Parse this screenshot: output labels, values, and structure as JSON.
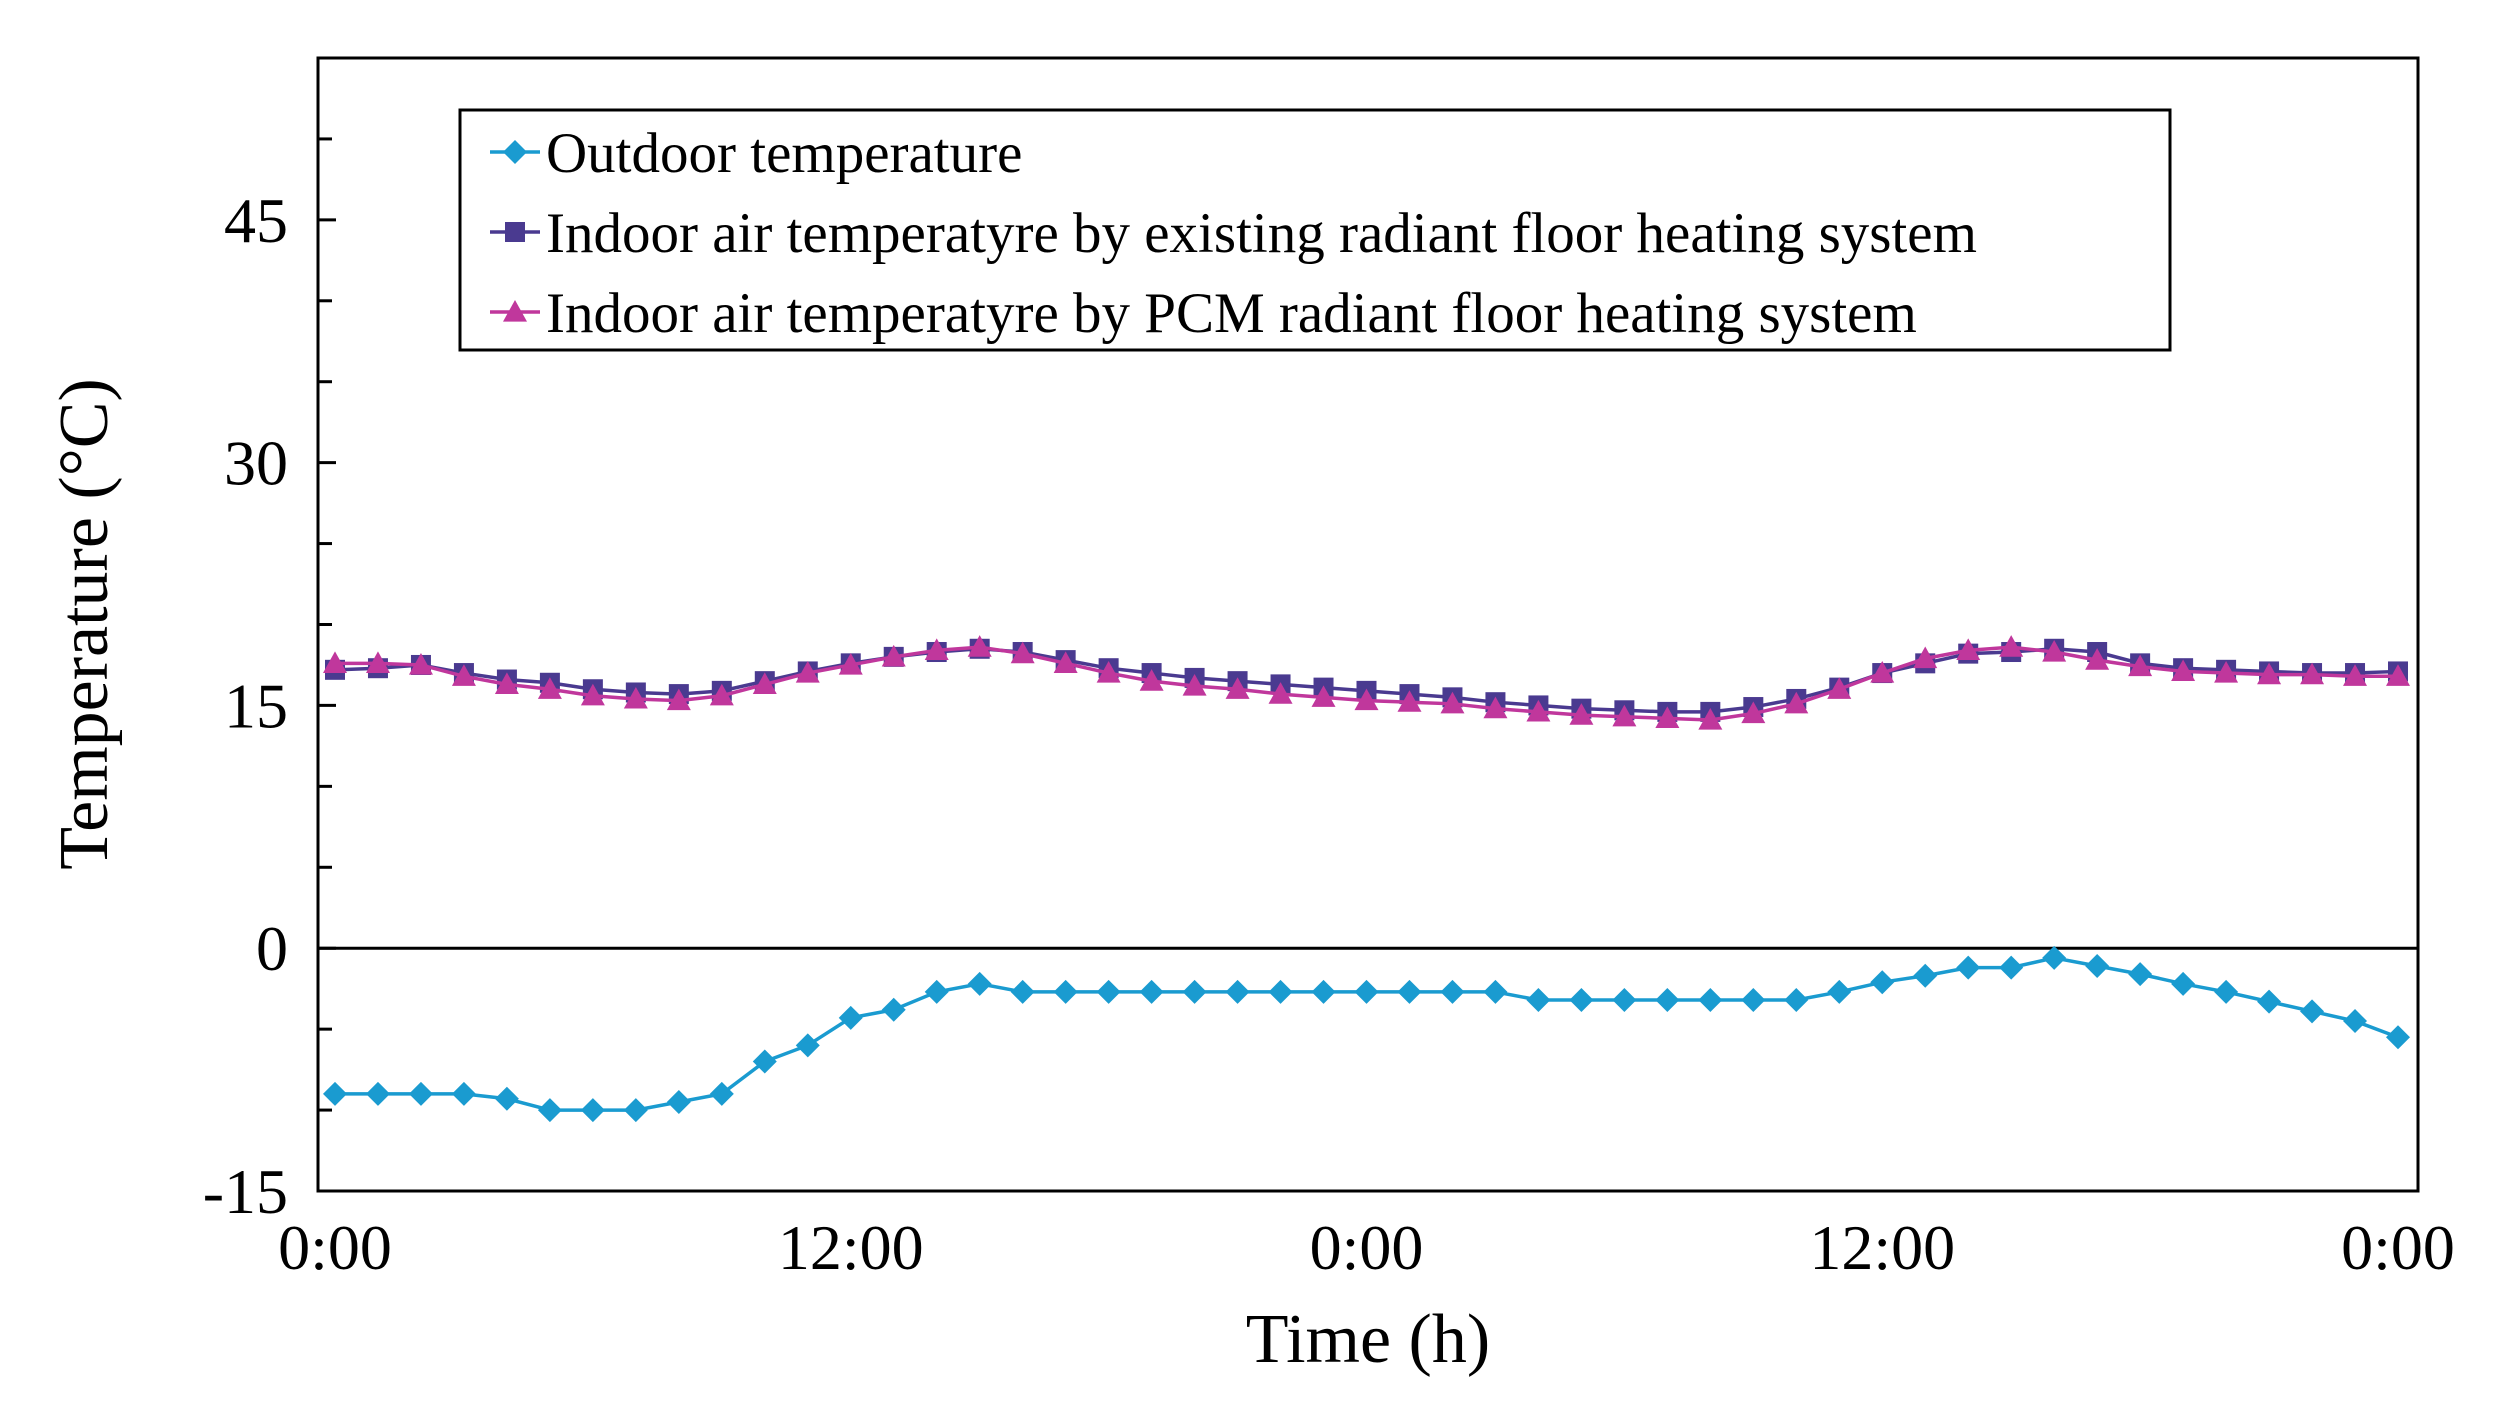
{
  "chart_data": {
    "type": "line",
    "title": "",
    "xlabel": "Time (h)",
    "ylabel": "Temperature (°C)",
    "ylim": [
      -15,
      55
    ],
    "xlim": [
      0,
      48
    ],
    "yticks": [
      -15,
      0,
      15,
      30,
      45
    ],
    "xticks": [
      {
        "value": 0,
        "label": "0:00"
      },
      {
        "value": 12,
        "label": "12:00"
      },
      {
        "value": 24,
        "label": "0:00"
      },
      {
        "value": 36,
        "label": "12:00"
      },
      {
        "value": 48,
        "label": "0:00"
      }
    ],
    "grid": false,
    "zero_line": true,
    "legend_position": "top-left",
    "x": [
      0,
      1,
      2,
      3,
      4,
      5,
      6,
      7,
      8,
      9,
      10,
      11,
      12,
      13,
      14,
      15,
      16,
      17,
      18,
      19,
      20,
      21,
      22,
      23,
      24,
      25,
      26,
      27,
      28,
      29,
      30,
      31,
      32,
      33,
      34,
      35,
      36,
      37,
      38,
      39,
      40,
      41,
      42,
      43,
      44,
      45,
      46,
      47,
      48
    ],
    "series": [
      {
        "name": "Outdoor temperature",
        "color": "#1a9bd0",
        "marker": "diamond",
        "values": [
          -9,
          -9,
          -9,
          -9,
          -9.3,
          -10,
          -10,
          -10,
          -9.5,
          -9,
          -7,
          -6,
          -4.3,
          -3.8,
          -2.7,
          -2.2,
          -2.7,
          -2.7,
          -2.7,
          -2.7,
          -2.7,
          -2.7,
          -2.7,
          -2.7,
          -2.7,
          -2.7,
          -2.7,
          -2.7,
          -3.2,
          -3.2,
          -3.2,
          -3.2,
          -3.2,
          -3.2,
          -3.2,
          -2.7,
          -2.1,
          -1.7,
          -1.2,
          -1.2,
          -0.6,
          -1.1,
          -1.6,
          -2.2,
          -2.7,
          -3.3,
          -3.9,
          -4.5,
          -5.5
        ]
      },
      {
        "name": "Indoor air temperatyre by existing radiant floor heating system",
        "color": "#4a3a90",
        "marker": "square",
        "values": [
          17.2,
          17.3,
          17.5,
          17,
          16.6,
          16.4,
          16,
          15.8,
          15.7,
          15.9,
          16.5,
          17.1,
          17.6,
          18,
          18.3,
          18.5,
          18.3,
          17.8,
          17.3,
          17,
          16.7,
          16.5,
          16.3,
          16.1,
          15.9,
          15.7,
          15.5,
          15.2,
          15,
          14.8,
          14.7,
          14.6,
          14.6,
          14.9,
          15.4,
          16.1,
          17,
          17.6,
          18.2,
          18.3,
          18.5,
          18.3,
          17.6,
          17.3,
          17.2,
          17.1,
          17,
          17,
          17.1
        ]
      },
      {
        "name": "Indoor air temperatyre by PCM radiant floor heating system",
        "color": "#c0379c",
        "marker": "triangle",
        "values": [
          17.6,
          17.6,
          17.5,
          16.8,
          16.3,
          16,
          15.6,
          15.4,
          15.3,
          15.6,
          16.3,
          17,
          17.5,
          18,
          18.4,
          18.6,
          18.2,
          17.6,
          17,
          16.5,
          16.2,
          16,
          15.7,
          15.5,
          15.3,
          15.2,
          15.1,
          14.8,
          14.6,
          14.4,
          14.3,
          14.2,
          14.1,
          14.5,
          15.1,
          16,
          17,
          17.9,
          18.4,
          18.6,
          18.3,
          17.8,
          17.4,
          17.1,
          17,
          16.9,
          16.9,
          16.8,
          16.8
        ]
      }
    ]
  }
}
